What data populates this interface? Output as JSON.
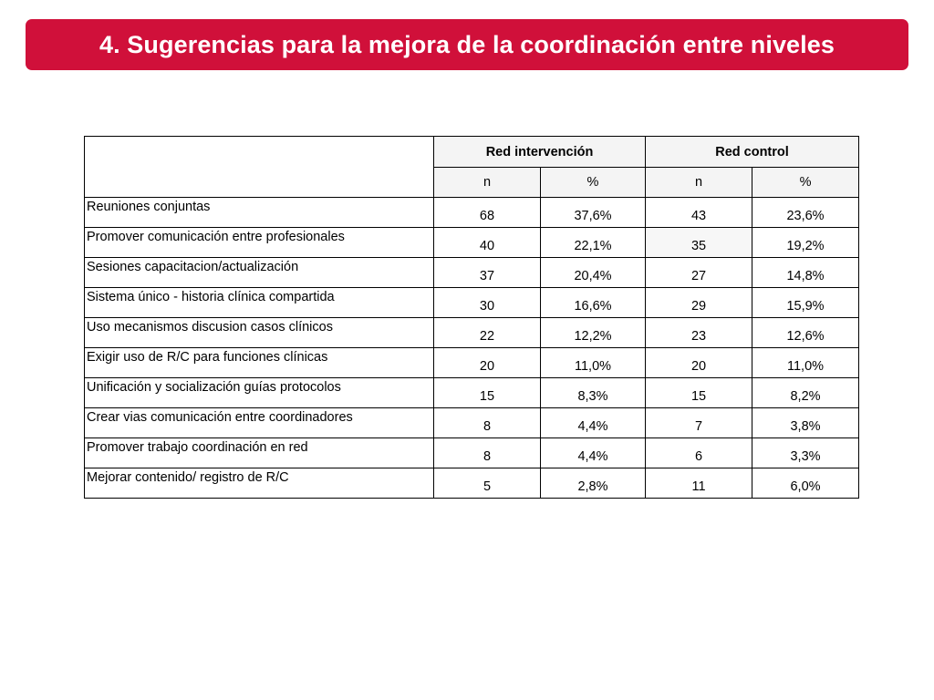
{
  "slide": {
    "title": "4. Sugerencias para la mejora de la coordinación entre niveles"
  },
  "table": {
    "group_headers": [
      "Red intervención",
      "Red control"
    ],
    "sub_headers": [
      "n",
      "%",
      "n",
      "%"
    ],
    "rows": [
      {
        "label": "Reuniones conjuntas",
        "cells": [
          "68",
          "37,6%",
          "43",
          "23,6%"
        ]
      },
      {
        "label": "Promover comunicación entre profesionales",
        "cells": [
          "40",
          "22,1%",
          "35",
          "19,2%"
        ]
      },
      {
        "label": "Sesiones capacitacion/actualización",
        "cells": [
          "37",
          "20,4%",
          "27",
          "14,8%"
        ]
      },
      {
        "label": "Sistema único - historia clínica compartida",
        "cells": [
          "30",
          "16,6%",
          "29",
          "15,9%"
        ]
      },
      {
        "label": "Uso mecanismos discusion casos clínicos",
        "cells": [
          "22",
          "12,2%",
          "23",
          "12,6%"
        ]
      },
      {
        "label": "Exigir uso de R/C para funciones clínicas",
        "cells": [
          "20",
          "11,0%",
          "20",
          "11,0%"
        ]
      },
      {
        "label": "Unificación y socialización guías protocolos",
        "cells": [
          "15",
          "8,3%",
          "15",
          "8,2%"
        ]
      },
      {
        "label": "Crear vias comunicación entre coordinadores",
        "cells": [
          "8",
          "4,4%",
          "7",
          "3,8%"
        ]
      },
      {
        "label": "Promover trabajo coordinación en red",
        "cells": [
          "8",
          "4,4%",
          "6",
          "3,3%"
        ]
      },
      {
        "label": "Mejorar contenido/ registro de R/C",
        "cells": [
          "5",
          "2,8%",
          "11",
          "6,0%"
        ]
      }
    ]
  },
  "colors": {
    "title_bar": "#d0103a",
    "title_text": "#ffffff",
    "header_fill": "#f4f4f4"
  }
}
